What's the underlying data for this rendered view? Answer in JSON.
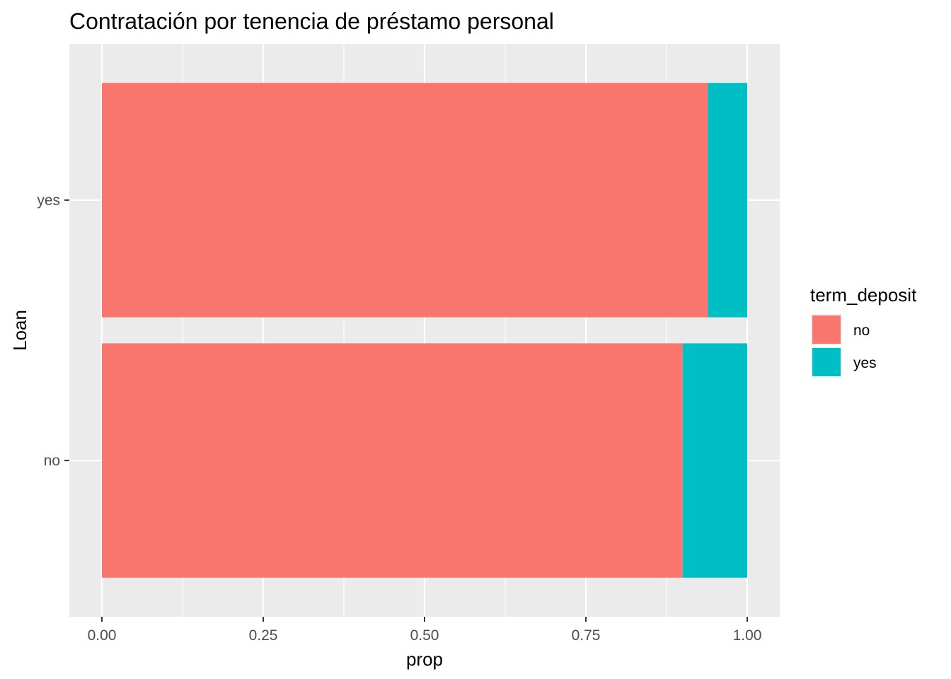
{
  "chart_data": {
    "type": "bar",
    "orientation": "horizontal",
    "stacked": true,
    "title": "Contratación por tenencia de préstamo personal",
    "xlabel": "prop",
    "ylabel": "Loan",
    "categories": [
      "no",
      "yes"
    ],
    "series": [
      {
        "name": "no",
        "color": "#F8766D",
        "values": [
          0.9,
          0.939
        ]
      },
      {
        "name": "yes",
        "color": "#00BFC4",
        "values": [
          0.1,
          0.061
        ]
      }
    ],
    "xlim": [
      0,
      1
    ],
    "x_ticks": [
      0,
      0.25,
      0.5,
      0.75,
      1
    ],
    "x_tick_labels": [
      "0.00",
      "0.25",
      "0.50",
      "0.75",
      "1.00"
    ],
    "grid": true,
    "legend": {
      "title": "term_deposit",
      "position": "right"
    },
    "panel_background": "#EBEBEB",
    "grid_color": "#FFFFFF"
  }
}
